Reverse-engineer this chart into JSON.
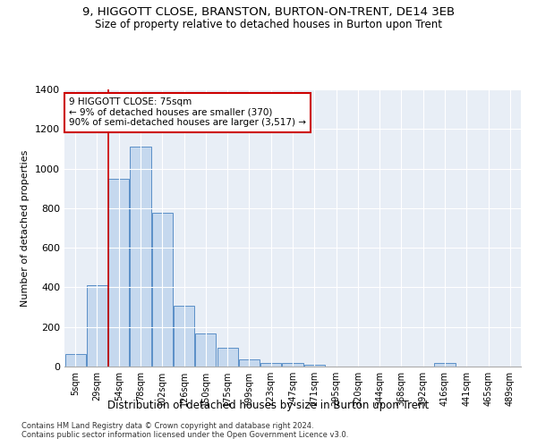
{
  "title_line1": "9, HIGGOTT CLOSE, BRANSTON, BURTON-ON-TRENT, DE14 3EB",
  "title_line2": "Size of property relative to detached houses in Burton upon Trent",
  "xlabel": "Distribution of detached houses by size in Burton upon Trent",
  "ylabel": "Number of detached properties",
  "footnote1": "Contains HM Land Registry data © Crown copyright and database right 2024.",
  "footnote2": "Contains public sector information licensed under the Open Government Licence v3.0.",
  "bar_labels": [
    "5sqm",
    "29sqm",
    "54sqm",
    "78sqm",
    "102sqm",
    "126sqm",
    "150sqm",
    "175sqm",
    "199sqm",
    "223sqm",
    "247sqm",
    "271sqm",
    "295sqm",
    "320sqm",
    "344sqm",
    "368sqm",
    "392sqm",
    "416sqm",
    "441sqm",
    "465sqm",
    "489sqm"
  ],
  "bar_values": [
    65,
    410,
    950,
    1110,
    775,
    305,
    165,
    97,
    35,
    18,
    18,
    10,
    0,
    0,
    0,
    0,
    0,
    18,
    0,
    0,
    0
  ],
  "bar_color": "#c5d8ee",
  "bar_edge_color": "#5b8fc7",
  "background_color": "#e8eef6",
  "annotation_text": "9 HIGGOTT CLOSE: 75sqm\n← 9% of detached houses are smaller (370)\n90% of semi-detached houses are larger (3,517) →",
  "vline_x": 1.5,
  "vline_color": "#cc0000",
  "annotation_box_color": "#cc0000",
  "ylim": [
    0,
    1400
  ],
  "yticks": [
    0,
    200,
    400,
    600,
    800,
    1000,
    1200,
    1400
  ]
}
